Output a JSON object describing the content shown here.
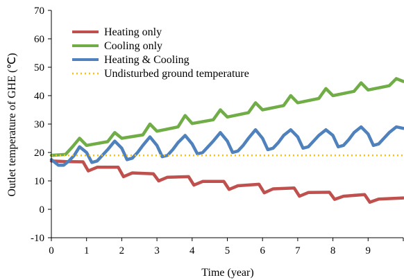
{
  "chart_data": {
    "type": "line",
    "title": "",
    "xlabel": "Time (year)",
    "ylabel": "Outlet temperature of GHE (℃)",
    "xlim": [
      0,
      10
    ],
    "ylim": [
      -10,
      70
    ],
    "xticks": [
      0,
      1,
      2,
      3,
      4,
      5,
      6,
      7,
      8,
      9
    ],
    "yticks": [
      -10,
      0,
      10,
      20,
      30,
      40,
      50,
      60,
      70
    ],
    "grid": false,
    "legend_position": "top-left",
    "series": [
      {
        "name": "Heating only",
        "color": "#c0504d",
        "style": "solid",
        "x": [
          0,
          0.4,
          0.9,
          1.05,
          1.3,
          1.9,
          2.05,
          2.3,
          2.9,
          3.05,
          3.3,
          3.9,
          4.05,
          4.3,
          4.9,
          5.05,
          5.3,
          5.9,
          6.05,
          6.3,
          6.9,
          7.05,
          7.3,
          7.9,
          8.05,
          8.3,
          8.9,
          9.05,
          9.3,
          10
        ],
        "y": [
          17,
          16.8,
          16.7,
          13.5,
          14.8,
          14.8,
          11.5,
          12.8,
          12.5,
          10,
          11.3,
          11.5,
          8.5,
          9.8,
          9.8,
          7,
          8.3,
          8.8,
          5.8,
          7.2,
          7.5,
          4.6,
          5.9,
          6,
          3.5,
          4.6,
          5.2,
          2.5,
          3.6,
          4
        ]
      },
      {
        "name": "Cooling only",
        "color": "#70ad47",
        "style": "solid",
        "x": [
          0,
          0.4,
          0.6,
          0.8,
          1.0,
          1.6,
          1.8,
          2.0,
          2.6,
          2.8,
          3.0,
          3.6,
          3.8,
          4.0,
          4.6,
          4.8,
          5.0,
          5.6,
          5.8,
          6.0,
          6.6,
          6.8,
          7.0,
          7.6,
          7.8,
          8.0,
          8.6,
          8.8,
          9.0,
          9.6,
          9.8,
          10
        ],
        "y": [
          19,
          19.3,
          22,
          25,
          22.5,
          23.8,
          27,
          25,
          26.2,
          30,
          27.5,
          29,
          33,
          30.2,
          31.5,
          35,
          32.5,
          34,
          37.5,
          35,
          36.5,
          40,
          37.5,
          39,
          42.5,
          40,
          41.5,
          44.5,
          42,
          43.5,
          46,
          45
        ]
      },
      {
        "name": "Heating & Cooling",
        "color": "#4f81bd",
        "style": "solid",
        "x": [
          0,
          0.2,
          0.35,
          0.5,
          0.65,
          0.8,
          1.0,
          1.15,
          1.3,
          1.45,
          1.6,
          1.8,
          2.0,
          2.15,
          2.3,
          2.45,
          2.6,
          2.8,
          3.0,
          3.15,
          3.3,
          3.45,
          3.6,
          3.8,
          4.0,
          4.15,
          4.3,
          4.45,
          4.6,
          4.8,
          5.0,
          5.15,
          5.3,
          5.45,
          5.6,
          5.8,
          6.0,
          6.15,
          6.3,
          6.45,
          6.6,
          6.8,
          7.0,
          7.15,
          7.3,
          7.45,
          7.6,
          7.8,
          8.0,
          8.15,
          8.3,
          8.45,
          8.6,
          8.8,
          9.0,
          9.15,
          9.3,
          9.45,
          9.6,
          9.8,
          10
        ],
        "y": [
          17.5,
          15.5,
          15.5,
          17,
          19,
          22,
          20,
          16.5,
          17,
          19,
          21,
          24,
          21.5,
          17.5,
          18,
          20,
          22.5,
          25.5,
          22.5,
          18.5,
          19,
          21,
          23.5,
          26,
          23,
          19.5,
          20,
          22,
          24,
          27,
          24,
          20,
          20.5,
          22.5,
          25,
          28,
          25,
          21,
          21.5,
          23.5,
          26,
          28,
          25.5,
          21.5,
          22,
          24,
          26,
          28,
          26,
          22,
          22.5,
          24.5,
          27,
          29,
          26.5,
          22.5,
          23,
          25,
          27,
          29,
          28.5
        ]
      },
      {
        "name": "Undisturbed ground temperature",
        "color": "#ffc000",
        "style": "dotted",
        "x": [
          0,
          10
        ],
        "y": [
          19,
          19
        ]
      }
    ]
  }
}
